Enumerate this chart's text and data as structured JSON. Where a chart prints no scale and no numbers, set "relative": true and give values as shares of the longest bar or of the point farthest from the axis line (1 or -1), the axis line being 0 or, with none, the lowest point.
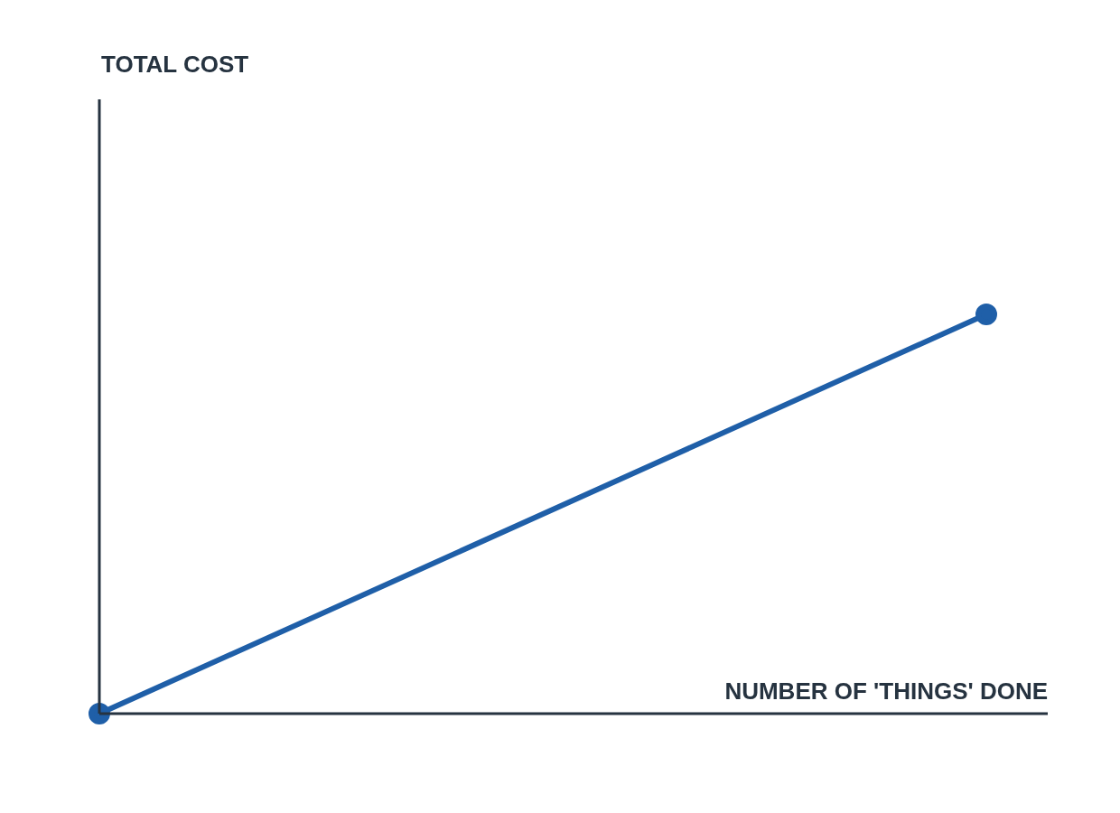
{
  "chart_data": {
    "type": "line",
    "relative": true,
    "annotations": [
      "TOTAL COST"
    ],
    "xlabel": "NUMBER OF 'THINGS' DONE",
    "categories": [
      null,
      null
    ],
    "series": [
      {
        "color": "#1f5fa8",
        "values": [
          0,
          1
        ]
      }
    ],
    "marker": "circle",
    "line_style": "solid",
    "legend": false
  }
}
